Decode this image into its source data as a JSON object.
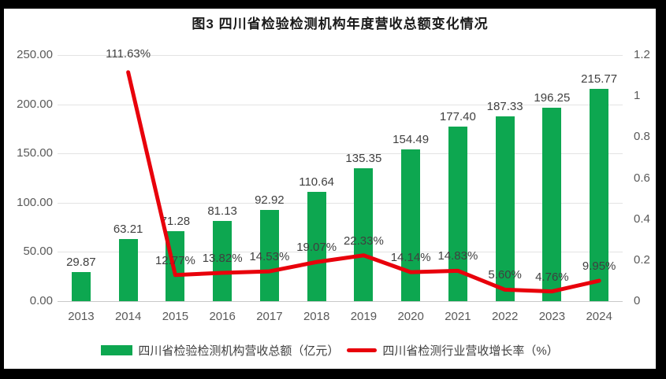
{
  "title": "图3  四川省检验检测机构年度营收总额变化情况",
  "colors": {
    "bar_green": "#0da750",
    "line_red": "#e8000b",
    "gridline": "#e3e3e3",
    "axis_line": "#c9c9c9",
    "tick_text": "#595959",
    "data_label_text": "#3f3f3f",
    "title_text": "#1a1a1a",
    "frame_border": "#000000",
    "background": "#ffffff"
  },
  "chart_data": {
    "type": "combo_bar_line",
    "title": "图3  四川省检验检测机构年度营收总额变化情况",
    "categories": [
      "2013",
      "2014",
      "2015",
      "2016",
      "2017",
      "2018",
      "2019",
      "2020",
      "2021",
      "2022",
      "2023",
      "2024"
    ],
    "series": [
      {
        "name": "四川省检验检测机构营收总额（亿元）",
        "type": "bar",
        "axis": "left",
        "color": "#0da750",
        "values": [
          29.87,
          63.21,
          71.28,
          81.13,
          92.92,
          110.64,
          135.35,
          154.49,
          177.4,
          187.33,
          196.25,
          215.77
        ],
        "labels": [
          "29.87",
          "63.21",
          "71.28",
          "81.13",
          "92.92",
          "110.64",
          "135.35",
          "154.49",
          "177.40",
          "187.33",
          "196.25",
          "215.77"
        ]
      },
      {
        "name": "四川省检测行业营收增长率（%）",
        "type": "line",
        "axis": "right",
        "color": "#e8000b",
        "values": [
          null,
          1.1163,
          0.1277,
          0.1382,
          0.1453,
          0.1907,
          0.2233,
          0.1414,
          0.1483,
          0.056,
          0.0476,
          0.0995
        ],
        "labels": [
          null,
          "111.63%",
          "12.77%",
          "13.82%",
          "14.53%",
          "19.07%",
          "22.33%",
          "14.14%",
          "14.83%",
          "5.60%",
          "4.76%",
          "9.95%"
        ]
      }
    ],
    "left_axis": {
      "min": 0,
      "max": 250,
      "ticks": [
        "0.00",
        "50.00",
        "100.00",
        "150.00",
        "200.00",
        "250.00"
      ]
    },
    "right_axis": {
      "min": 0,
      "max": 1.2,
      "ticks": [
        "0",
        "0.2",
        "0.4",
        "0.6",
        "0.8",
        "1",
        "1.2"
      ]
    },
    "grid": true,
    "legend_position": "bottom"
  }
}
